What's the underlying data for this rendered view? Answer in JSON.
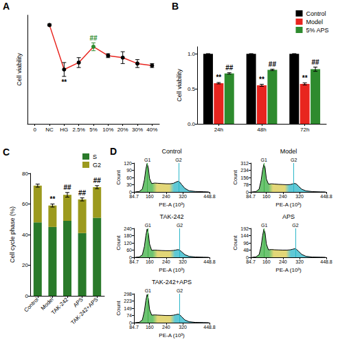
{
  "chart_data": [
    {
      "panel_label": "A",
      "type": "line",
      "categories": [
        "0",
        "NC",
        "HG",
        "2.5%",
        "5%",
        "10%",
        "20%",
        "30%",
        "40%"
      ],
      "values": [
        null,
        1.0,
        0.55,
        0.62,
        0.78,
        0.69,
        0.67,
        0.61,
        0.59
      ],
      "errors": [
        null,
        0.01,
        0.07,
        0.05,
        0.04,
        0.02,
        0.06,
        0.04,
        0.02
      ],
      "color": "#e8251f",
      "colors": [
        null,
        "#000000",
        "#000000",
        "#000000",
        "#2e8b2e",
        "#000000",
        "#000000",
        "#000000",
        "#000000"
      ],
      "marker": "circle",
      "y_label": "Cell viability",
      "ylim": [
        0,
        1.1
      ],
      "tick_labels": "x",
      "annotations": [
        {
          "text": "**",
          "category": "HG",
          "position": "below",
          "color": "#000000"
        },
        {
          "text": "##",
          "category": "5%",
          "position": "above",
          "color": "#2e8b2e"
        }
      ]
    },
    {
      "panel_label": "B",
      "type": "bar",
      "categories": [
        "24h",
        "48h",
        "72h"
      ],
      "y_label": "Cell viability",
      "ylim": [
        0,
        1.1
      ],
      "yticks": [
        {
          "value": 0,
          "label": "0.0"
        },
        {
          "value": 0.5,
          "label": "0.5"
        },
        {
          "value": 1,
          "label": "1.0"
        }
      ],
      "legend": "top-right",
      "series": [
        {
          "name": "Control",
          "color": "#000000",
          "values": [
            1,
            1,
            1
          ],
          "errors": [
            0,
            0,
            0
          ]
        },
        {
          "name": "Model",
          "color": "#e8251f",
          "values": [
            0.58,
            0.55,
            0.57
          ],
          "errors": [
            0.01,
            0.015,
            0.015
          ],
          "annotation": "**"
        },
        {
          "name": "5% APS",
          "color": "#2e8b2e",
          "values": [
            0.72,
            0.77,
            0.78
          ],
          "errors": [
            0.01,
            0.01,
            0.03
          ],
          "annotation": "##"
        }
      ]
    },
    {
      "panel_label": "C",
      "type": "bar",
      "stacked": true,
      "categories": [
        "Control",
        "Model",
        "TAK-242",
        "APS",
        "TAK-242+APS"
      ],
      "y_label": "Cell cycle phase (%)",
      "ylim": [
        0,
        80
      ],
      "yticks": [
        0,
        20,
        40,
        60,
        80
      ],
      "legend": "top-right",
      "series": [
        {
          "name": "S",
          "color": "#2a7a2a",
          "values": [
            48,
            45,
            49,
            41,
            51
          ]
        },
        {
          "name": "G2",
          "color": "#9c9a1e",
          "values": [
            24,
            14,
            17,
            22,
            20
          ],
          "errors": [
            1,
            1,
            1.5,
            1,
            1
          ]
        }
      ],
      "annotations": [
        null,
        "**",
        "##",
        "##",
        "##"
      ]
    },
    {
      "panel_label": "D",
      "type": "area",
      "title": "Control",
      "x": [
        90,
        110,
        125,
        135,
        142,
        148,
        154,
        160,
        170,
        185,
        200,
        220,
        240,
        260,
        275,
        285,
        292,
        298,
        305,
        315,
        330,
        350,
        380,
        420,
        445
      ],
      "values": [
        0,
        2,
        12,
        50,
        95,
        118,
        100,
        55,
        35,
        37,
        36,
        35,
        34,
        34,
        36,
        40,
        43,
        44,
        41,
        30,
        15,
        5,
        2,
        1,
        0
      ],
      "color": "#000000",
      "x_label": "PE-A (10³)",
      "y_label": "Count",
      "xlim": [
        84.7,
        448.8
      ],
      "xticks": [
        84.7,
        160,
        240,
        320,
        448.8
      ],
      "ylim": [
        0,
        120
      ],
      "yticks": [
        0,
        30,
        60,
        90,
        120
      ],
      "markers": [
        {
          "label": "G1",
          "value": 150,
          "color": "#3cb043"
        },
        {
          "label": "G2",
          "value": 300,
          "color": "#29b6c8"
        }
      ]
    },
    {
      "type": "area",
      "title": "Model",
      "x": [
        90,
        110,
        125,
        135,
        142,
        148,
        154,
        160,
        170,
        185,
        200,
        220,
        240,
        260,
        275,
        285,
        292,
        298,
        305,
        315,
        330,
        350,
        380,
        420,
        445
      ],
      "values": [
        0,
        4,
        30,
        130,
        240,
        300,
        260,
        140,
        85,
        88,
        85,
        82,
        80,
        78,
        80,
        86,
        90,
        92,
        85,
        62,
        30,
        12,
        4,
        1,
        0
      ],
      "color": "#000000",
      "x_label": "PE-A (10³)",
      "y_label": "Count",
      "xlim": [
        84.7,
        448.8
      ],
      "xticks": [
        84.7,
        160,
        240,
        320,
        448.8
      ],
      "ylim": [
        0,
        312
      ],
      "yticks": [
        0,
        78,
        156,
        234,
        312
      ],
      "markers": [
        {
          "label": "G1",
          "value": 148,
          "color": "#3cb043"
        },
        {
          "label": "G2",
          "value": 292,
          "color": "#29b6c8"
        }
      ]
    },
    {
      "type": "area",
      "title": "TAK-242",
      "x": [
        90,
        110,
        125,
        135,
        142,
        148,
        154,
        160,
        170,
        185,
        200,
        220,
        240,
        260,
        275,
        285,
        292,
        298,
        305,
        315,
        330,
        350,
        380,
        420,
        445
      ],
      "values": [
        0,
        3,
        20,
        90,
        180,
        235,
        200,
        110,
        58,
        60,
        58,
        56,
        55,
        55,
        57,
        60,
        63,
        64,
        60,
        45,
        22,
        8,
        3,
        1,
        0
      ],
      "color": "#000000",
      "x_label": "PE-A (10³)",
      "y_label": "Count",
      "xlim": [
        84.7,
        448.8
      ],
      "xticks": [
        84.7,
        160,
        240,
        320,
        448.8
      ],
      "ylim": [
        0,
        240
      ],
      "yticks": [
        0,
        60,
        120,
        180,
        240
      ],
      "markers": [
        {
          "label": "G1",
          "value": 152,
          "color": "#3cb043"
        },
        {
          "label": "G2",
          "value": 305,
          "color": "#29b6c8"
        }
      ]
    },
    {
      "type": "area",
      "title": "APS",
      "x": [
        90,
        110,
        125,
        135,
        142,
        148,
        154,
        160,
        170,
        185,
        200,
        220,
        240,
        260,
        275,
        285,
        292,
        298,
        305,
        315,
        330,
        350,
        380,
        420,
        445
      ],
      "values": [
        0,
        3,
        18,
        75,
        145,
        188,
        160,
        88,
        50,
        52,
        50,
        49,
        48,
        48,
        50,
        53,
        56,
        57,
        53,
        40,
        20,
        7,
        2,
        1,
        0
      ],
      "color": "#000000",
      "x_label": "PE-A (10³)",
      "y_label": "Count",
      "xlim": [
        84.7,
        448.8
      ],
      "xticks": [
        84.7,
        160,
        240,
        320,
        448.8
      ],
      "ylim": [
        0,
        192
      ],
      "yticks": [
        0,
        48,
        96,
        144,
        192
      ],
      "markers": [
        {
          "label": "G1",
          "value": 150,
          "color": "#3cb043"
        },
        {
          "label": "G2",
          "value": 300,
          "color": "#29b6c8"
        }
      ]
    },
    {
      "type": "area",
      "title": "TAK-242+APS",
      "x": [
        90,
        110,
        125,
        135,
        142,
        148,
        154,
        160,
        170,
        185,
        200,
        220,
        240,
        260,
        275,
        285,
        292,
        298,
        305,
        315,
        330,
        350,
        380,
        420,
        445
      ],
      "values": [
        0,
        4,
        28,
        120,
        230,
        290,
        250,
        135,
        78,
        80,
        78,
        76,
        74,
        74,
        77,
        82,
        86,
        88,
        82,
        60,
        28,
        10,
        3,
        1,
        0
      ],
      "color": "#000000",
      "x_label": "PE-A (10³)",
      "y_label": "Count",
      "xlim": [
        84.7,
        448.8
      ],
      "xticks": [
        84.7,
        160,
        240,
        320,
        448.8
      ],
      "ylim": [
        0,
        298
      ],
      "yticks": [
        0,
        74,
        149,
        223,
        298
      ],
      "markers": [
        {
          "label": "G1",
          "value": 152,
          "color": "#3cb043"
        },
        {
          "label": "G2",
          "value": 305,
          "color": "#29b6c8"
        }
      ]
    }
  ]
}
